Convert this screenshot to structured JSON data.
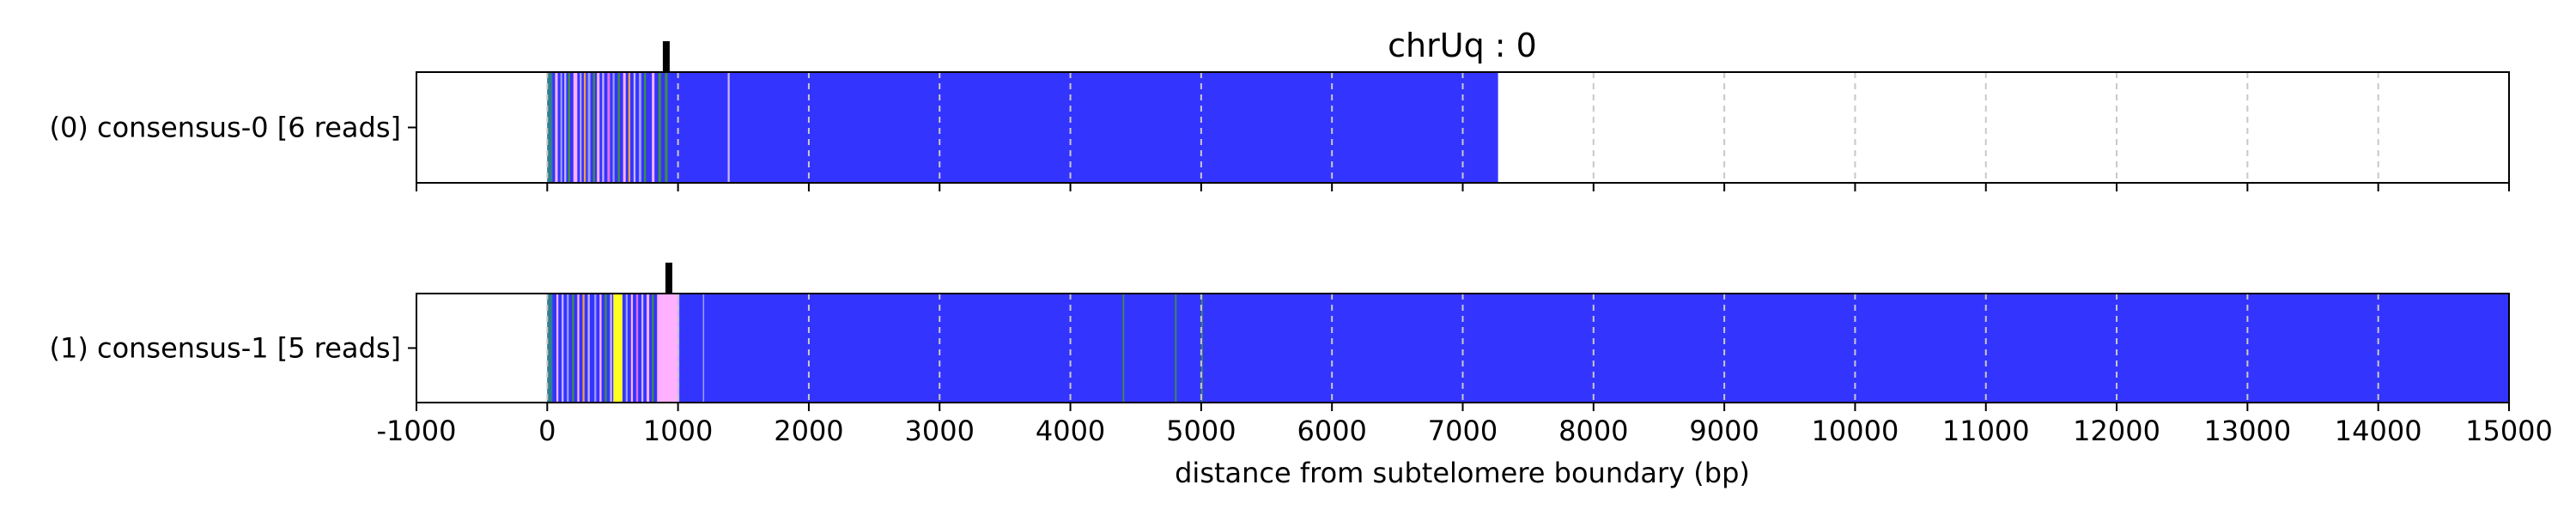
{
  "chart_data": {
    "type": "bar",
    "title": "chrUq : 0",
    "xlabel": "distance from subtelomere boundary (bp)",
    "ylabel": "",
    "xlim": [
      -1000,
      15000
    ],
    "xticks": [
      -1000,
      0,
      1000,
      2000,
      3000,
      4000,
      5000,
      6000,
      7000,
      8000,
      9000,
      10000,
      11000,
      12000,
      13000,
      14000,
      15000
    ],
    "grid": "vertical dashed",
    "colors": {
      "main": "#3434ff",
      "blue_light": "#9a9aff",
      "lavender": "#c8b4ff",
      "pink": "#ffb0ff",
      "magenta": "#e070e0",
      "green": "#3f8f3f",
      "teal": "#2f7f8f",
      "yellow": "#ffff20",
      "orange": "#f0a040",
      "dark_blue": "#1a1a8a",
      "marker": "#000000",
      "grid": "#c8c8c8"
    },
    "tracks": [
      {
        "label": "(0) consensus-0 [6 reads]",
        "span": [
          0,
          7270
        ],
        "marker": 910,
        "segments": [
          {
            "start": 0,
            "end": 40,
            "color": "teal"
          },
          {
            "start": 60,
            "end": 80,
            "color": "pink"
          },
          {
            "start": 100,
            "end": 115,
            "color": "blue_light"
          },
          {
            "start": 130,
            "end": 145,
            "color": "lavender"
          },
          {
            "start": 160,
            "end": 175,
            "color": "green"
          },
          {
            "start": 200,
            "end": 230,
            "color": "pink"
          },
          {
            "start": 250,
            "end": 262,
            "color": "lavender"
          },
          {
            "start": 280,
            "end": 295,
            "color": "orange"
          },
          {
            "start": 310,
            "end": 330,
            "color": "blue_light"
          },
          {
            "start": 350,
            "end": 365,
            "color": "green"
          },
          {
            "start": 380,
            "end": 400,
            "color": "pink"
          },
          {
            "start": 420,
            "end": 435,
            "color": "lavender"
          },
          {
            "start": 460,
            "end": 480,
            "color": "magenta"
          },
          {
            "start": 500,
            "end": 515,
            "color": "blue_light"
          },
          {
            "start": 540,
            "end": 555,
            "color": "green"
          },
          {
            "start": 580,
            "end": 600,
            "color": "pink"
          },
          {
            "start": 620,
            "end": 635,
            "color": "orange"
          },
          {
            "start": 660,
            "end": 675,
            "color": "lavender"
          },
          {
            "start": 700,
            "end": 720,
            "color": "blue_light"
          },
          {
            "start": 740,
            "end": 755,
            "color": "green"
          },
          {
            "start": 800,
            "end": 820,
            "color": "pink"
          },
          {
            "start": 850,
            "end": 870,
            "color": "green"
          },
          {
            "start": 900,
            "end": 920,
            "color": "green"
          },
          {
            "start": 1380,
            "end": 1395,
            "color": "lavender"
          }
        ]
      },
      {
        "label": "(1) consensus-1 [5 reads]",
        "span": [
          0,
          15000
        ],
        "marker": 930,
        "segments": [
          {
            "start": 0,
            "end": 40,
            "color": "teal"
          },
          {
            "start": 70,
            "end": 85,
            "color": "pink"
          },
          {
            "start": 110,
            "end": 125,
            "color": "lavender"
          },
          {
            "start": 150,
            "end": 165,
            "color": "blue_light"
          },
          {
            "start": 190,
            "end": 205,
            "color": "green"
          },
          {
            "start": 230,
            "end": 245,
            "color": "pink"
          },
          {
            "start": 270,
            "end": 285,
            "color": "orange"
          },
          {
            "start": 310,
            "end": 325,
            "color": "lavender"
          },
          {
            "start": 360,
            "end": 375,
            "color": "blue_light"
          },
          {
            "start": 400,
            "end": 415,
            "color": "pink"
          },
          {
            "start": 440,
            "end": 455,
            "color": "green"
          },
          {
            "start": 480,
            "end": 495,
            "color": "lavender"
          },
          {
            "start": 505,
            "end": 575,
            "color": "yellow"
          },
          {
            "start": 600,
            "end": 615,
            "color": "blue_light"
          },
          {
            "start": 640,
            "end": 655,
            "color": "pink"
          },
          {
            "start": 680,
            "end": 695,
            "color": "magenta"
          },
          {
            "start": 720,
            "end": 735,
            "color": "lavender"
          },
          {
            "start": 760,
            "end": 780,
            "color": "pink"
          },
          {
            "start": 800,
            "end": 815,
            "color": "green"
          },
          {
            "start": 840,
            "end": 1000,
            "color": "pink"
          },
          {
            "start": 1000,
            "end": 1010,
            "color": "lavender"
          },
          {
            "start": 1190,
            "end": 1200,
            "color": "blue_light"
          },
          {
            "start": 4400,
            "end": 4412,
            "color": "green"
          },
          {
            "start": 4800,
            "end": 4812,
            "color": "green"
          },
          {
            "start": 5000,
            "end": 5012,
            "color": "green"
          }
        ]
      }
    ]
  }
}
